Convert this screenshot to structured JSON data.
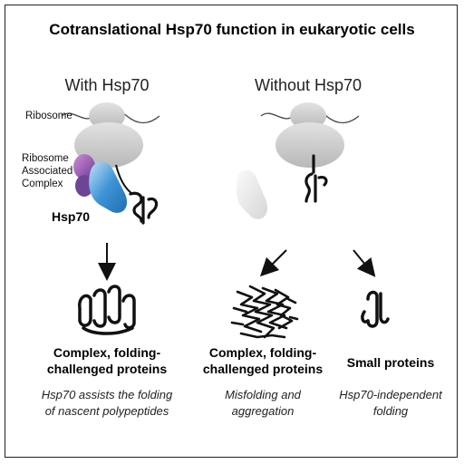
{
  "title": "Cotranslational Hsp70 function in eukaryotic cells",
  "left": {
    "heading": "With Hsp70",
    "ribosome_label": "Ribosome",
    "rac_label": [
      "Ribosome",
      "Associated",
      "Complex"
    ],
    "hsp70_label": "Hsp70",
    "caption_bold": [
      "Complex, folding-",
      "challenged proteins"
    ],
    "caption_italic": [
      "Hsp70 assists the folding",
      "of nascent polypeptides"
    ]
  },
  "right": {
    "heading": "Without Hsp70",
    "middle": {
      "caption_bold": [
        "Complex, folding-",
        "challenged proteins"
      ],
      "caption_italic": [
        "Misfolding and",
        "aggregation"
      ]
    },
    "small": {
      "caption_bold": [
        "Small proteins"
      ],
      "caption_italic": [
        "Hsp70-independent",
        "folding"
      ]
    }
  },
  "colors": {
    "ribosome": "#c9c9c9",
    "rac_purple": "#8a4fa8",
    "hsp70_blue": "#2f86c8",
    "absent_hsp70": "#e6e6e6"
  }
}
